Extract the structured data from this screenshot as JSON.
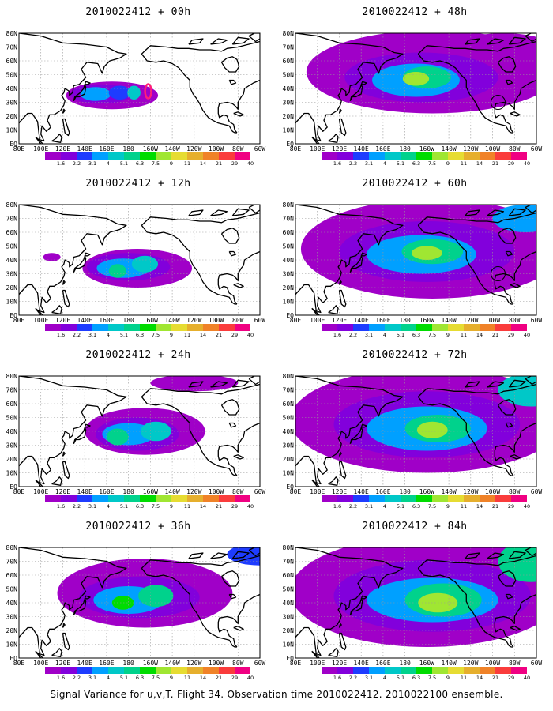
{
  "panels": [
    {
      "title": "2010022412 + 00h",
      "lead": 0
    },
    {
      "title": "2010022412 + 48h",
      "lead": 48
    },
    {
      "title": "2010022412 + 12h",
      "lead": 12
    },
    {
      "title": "2010022412 + 60h",
      "lead": 60
    },
    {
      "title": "2010022412 + 24h",
      "lead": 24
    },
    {
      "title": "2010022412 + 72h",
      "lead": 72
    },
    {
      "title": "2010022412 + 36h",
      "lead": 36
    },
    {
      "title": "2010022412 + 84h",
      "lead": 84
    }
  ],
  "lon_labels": [
    "80E",
    "100E",
    "120E",
    "140E",
    "160E",
    "180",
    "160W",
    "140W",
    "120W",
    "100W",
    "80W",
    "60W"
  ],
  "lat_labels": [
    "EQ",
    "10N",
    "20N",
    "30N",
    "40N",
    "50N",
    "60N",
    "70N",
    "80N"
  ],
  "colorbar": {
    "labels": [
      "1.6",
      "2.2",
      "3.1",
      "4",
      "5.1",
      "6.3",
      "7.5",
      "9",
      "11",
      "14",
      "21",
      "29",
      "40"
    ],
    "colors": [
      "#a000c8",
      "#8200dc",
      "#1e3cff",
      "#00a0ff",
      "#00c8c8",
      "#00d28c",
      "#00dc00",
      "#a0e632",
      "#e6dc32",
      "#e6af2d",
      "#f08228",
      "#fa3c3c",
      "#f00082"
    ]
  },
  "caption": "Signal Variance for u,v,T. Flight 34. Observation time 2010022412. 2010022100 ensemble."
}
